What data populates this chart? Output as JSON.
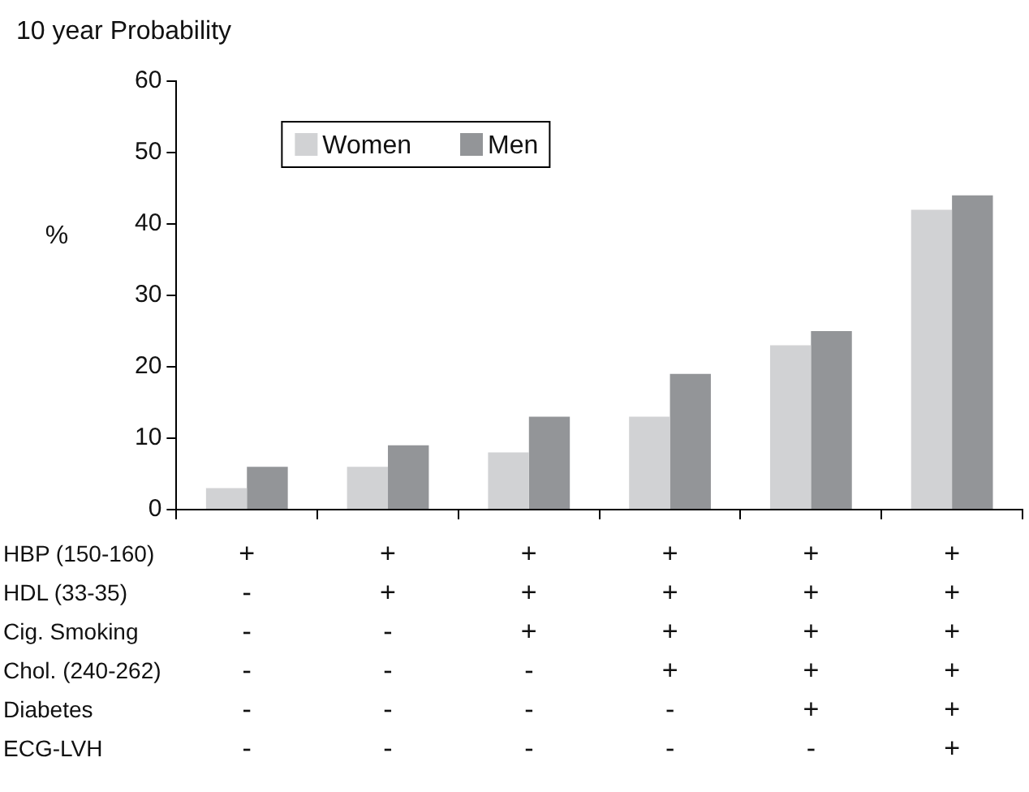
{
  "chart_data": {
    "type": "bar",
    "title": "10 year Probability",
    "ylabel": "%",
    "categories": [
      "+\n-\n-\n-\n-\n-",
      "+\n+\n-\n-\n-\n-",
      "+\n+\n+\n-\n-\n-",
      "+\n+\n+\n+\n-\n-",
      "+\n+\n+\n+\n+\n-",
      "+\n+\n+\n+\n+\n+"
    ],
    "series": [
      {
        "name": "Women",
        "color": "#d1d2d4",
        "values": [
          3,
          6,
          8,
          13,
          23,
          42
        ]
      },
      {
        "name": "Men",
        "color": "#939598",
        "values": [
          6,
          9,
          13,
          19,
          25,
          44
        ]
      }
    ],
    "annotations": [
      "HBP (150-160)",
      "HDL (33-35)",
      "Cig. Smoking",
      "Chol. (240-262)",
      "Diabetes",
      "ECG-LVH"
    ],
    "ylim": [
      0,
      60
    ],
    "yticks": [
      0,
      10,
      20,
      30,
      40,
      50,
      60
    ],
    "grid": false,
    "legend": "top left"
  }
}
